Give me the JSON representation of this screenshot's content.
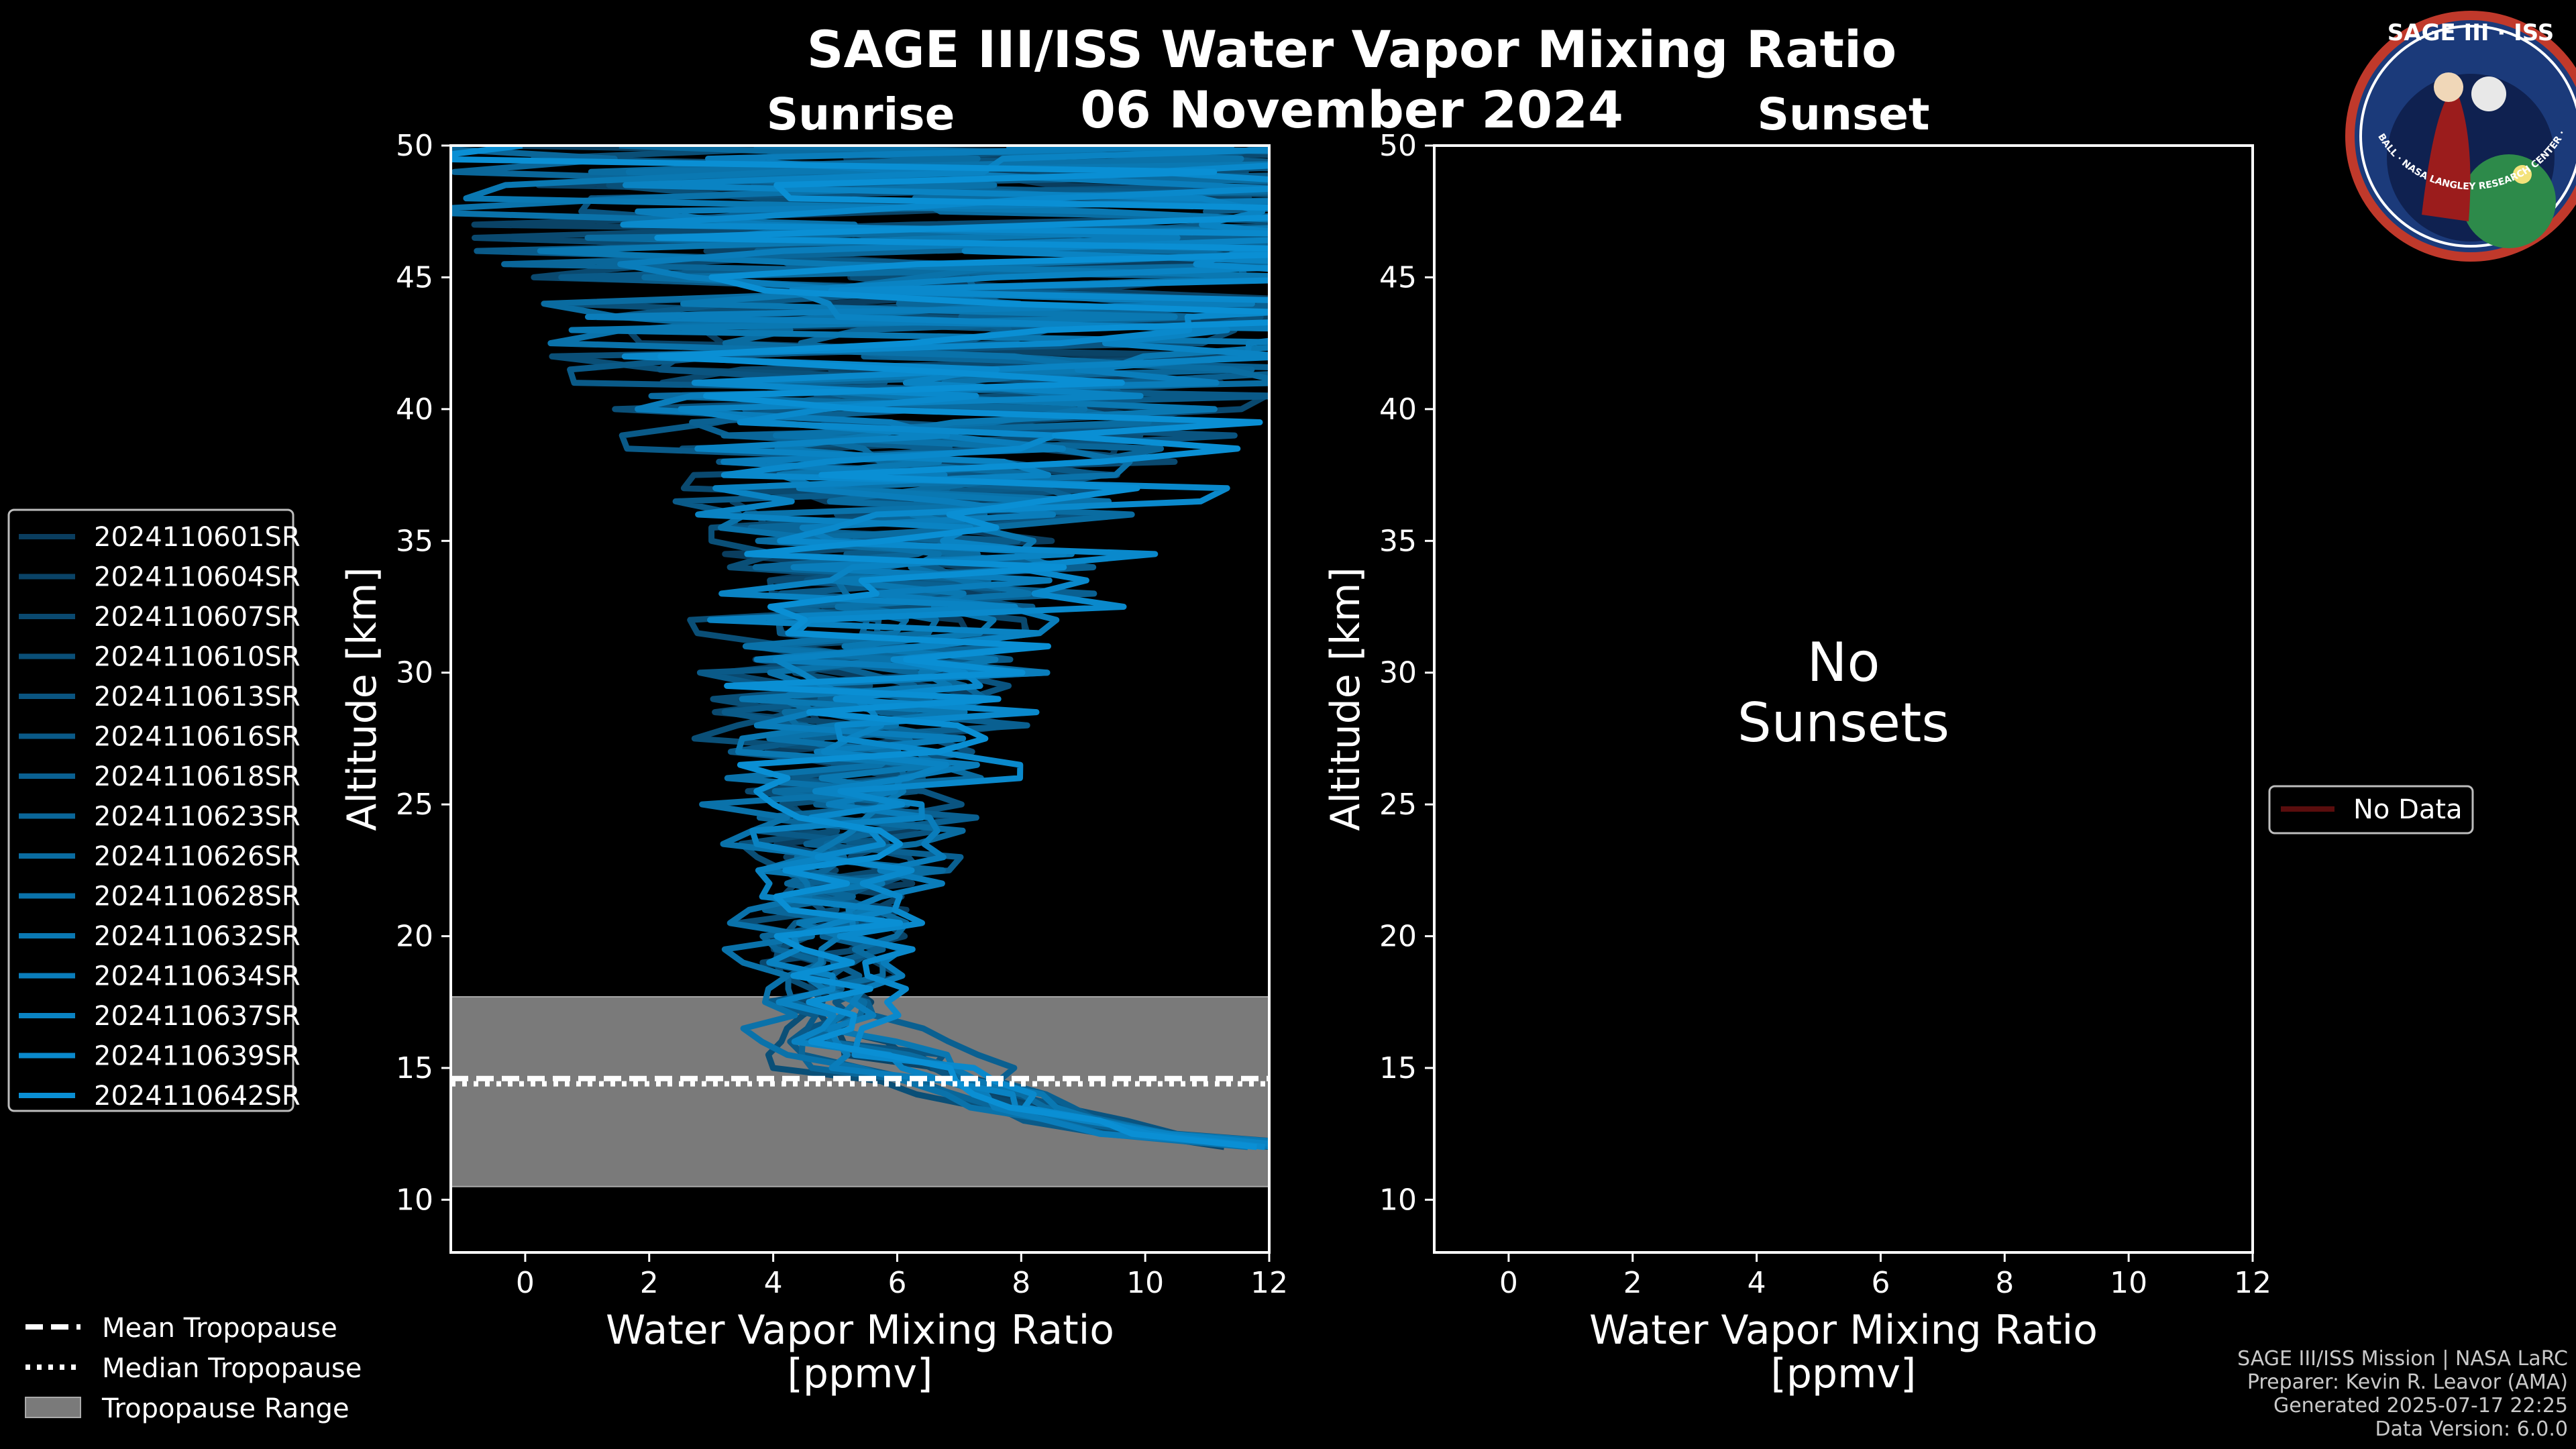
{
  "header": {
    "title": "SAGE III/ISS Water Vapor Mixing Ratio",
    "date": "06 November 2024",
    "sunrise_label": "Sunrise",
    "sunset_label": "Sunset"
  },
  "logo": {
    "text": "SAGE III · ISS",
    "ring_text": "BALL · NASA LANGLEY RESEARCH CENTER · TAS · ESA"
  },
  "colors": {
    "background": "#000000",
    "axes": "#ffffff",
    "tropopause_fill": "#7a7a7a",
    "profile_dark": "#0a3d5e",
    "profile_light": "#0a8fd4",
    "no_data_line": "#5a0d0d",
    "logo_ring": "#c0392b"
  },
  "chart_data": [
    {
      "type": "line",
      "panel": "sunrise",
      "xlabel": "Water Vapor Mixing Ratio\n[ppmv]",
      "ylabel": "Altitude [km]",
      "xlim": [
        -1.2,
        12
      ],
      "ylim": [
        8,
        50
      ],
      "xticks": [
        0,
        2,
        4,
        6,
        8,
        10,
        12
      ],
      "yticks": [
        10,
        15,
        20,
        25,
        30,
        35,
        40,
        45,
        50
      ],
      "grid": false,
      "legend_position": "left",
      "tropopause": {
        "min_km": 10.5,
        "max_km": 17.7,
        "mean_km": 14.6,
        "median_km": 14.4
      },
      "series": [
        {
          "name": "2024110601SR",
          "surface_ppmv": 12.0,
          "min_ppmv": 4.2,
          "hygropause_km": 19.0
        },
        {
          "name": "2024110604SR",
          "surface_ppmv": 13.0,
          "min_ppmv": 4.6,
          "hygropause_km": 18.5
        },
        {
          "name": "2024110607SR",
          "surface_ppmv": 11.5,
          "min_ppmv": 4.0,
          "hygropause_km": 19.5
        },
        {
          "name": "2024110610SR",
          "surface_ppmv": 12.5,
          "min_ppmv": 3.6,
          "hygropause_km": 18.0
        },
        {
          "name": "2024110613SR",
          "surface_ppmv": 13.0,
          "min_ppmv": 4.4,
          "hygropause_km": 19.0
        },
        {
          "name": "2024110616SR",
          "surface_ppmv": 12.0,
          "min_ppmv": 3.8,
          "hygropause_km": 18.5
        },
        {
          "name": "2024110618SR",
          "surface_ppmv": 12.0,
          "min_ppmv": 4.8,
          "hygropause_km": 20.0
        },
        {
          "name": "2024110623SR",
          "surface_ppmv": 13.0,
          "min_ppmv": 4.0,
          "hygropause_km": 18.0
        },
        {
          "name": "2024110626SR",
          "surface_ppmv": 12.5,
          "min_ppmv": 4.5,
          "hygropause_km": 19.0
        },
        {
          "name": "2024110628SR",
          "surface_ppmv": 12.0,
          "min_ppmv": 3.4,
          "hygropause_km": 18.5
        },
        {
          "name": "2024110632SR",
          "surface_ppmv": 13.0,
          "min_ppmv": 4.2,
          "hygropause_km": 19.5
        },
        {
          "name": "2024110634SR",
          "surface_ppmv": 12.0,
          "min_ppmv": 4.6,
          "hygropause_km": 18.0
        },
        {
          "name": "2024110637SR",
          "surface_ppmv": 12.5,
          "min_ppmv": 4.0,
          "hygropause_km": 19.0
        },
        {
          "name": "2024110639SR",
          "surface_ppmv": 12.0,
          "min_ppmv": 5.0,
          "hygropause_km": 18.5
        },
        {
          "name": "2024110642SR",
          "surface_ppmv": 12.0,
          "min_ppmv": 4.3,
          "hygropause_km": 19.0
        }
      ],
      "tropopause_legend": [
        "Mean Tropopause",
        "Median Tropopause",
        "Tropopause Range"
      ]
    },
    {
      "type": "line",
      "panel": "sunset",
      "xlabel": "Water Vapor Mixing Ratio\n[ppmv]",
      "ylabel": "Altitude [km]",
      "xlim": [
        -1.2,
        12
      ],
      "ylim": [
        8,
        50
      ],
      "xticks": [
        0,
        2,
        4,
        6,
        8,
        10,
        12
      ],
      "yticks": [
        10,
        15,
        20,
        25,
        30,
        35,
        40,
        45,
        50
      ],
      "grid": false,
      "legend_position": "right",
      "series": [],
      "legend": [
        "No Data"
      ],
      "annotation": "No\nSunsets"
    }
  ],
  "credits": [
    "SAGE III/ISS Mission | NASA LaRC",
    "Preparer: Kevin R. Leavor (AMA)",
    "Generated 2025-07-17 22:25",
    "Data Version: 6.0.0"
  ]
}
